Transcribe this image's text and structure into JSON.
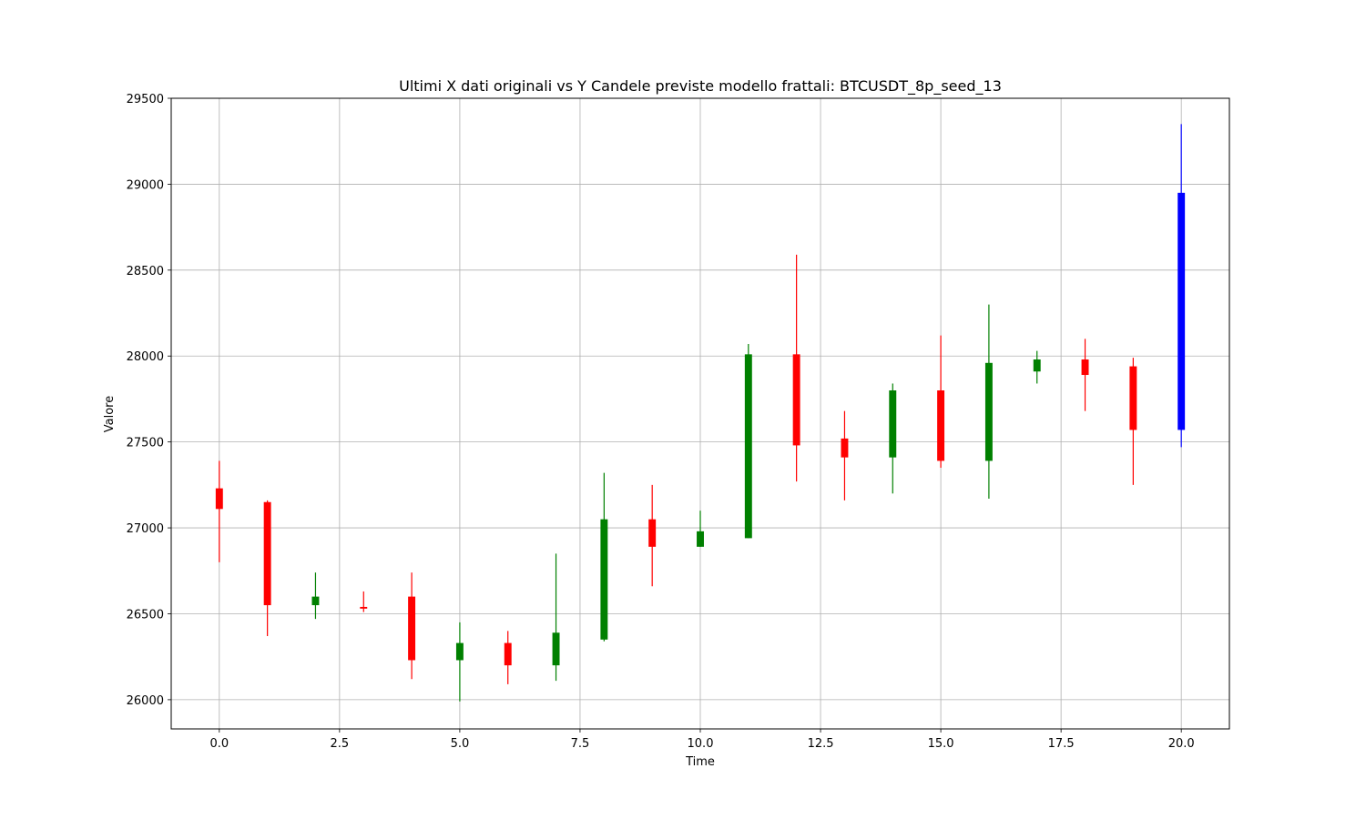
{
  "chart_data": {
    "type": "candlestick",
    "title": "Ultimi X dati originali vs Y Candele previste modello frattali: BTCUSDT_8p_seed_13",
    "xlabel": "Time",
    "ylabel": "Valore",
    "xlim": [
      -1,
      21
    ],
    "ylim": [
      25830,
      29500
    ],
    "grid": true,
    "x_ticks": [
      0.0,
      2.5,
      5.0,
      7.5,
      10.0,
      12.5,
      15.0,
      17.5,
      20.0
    ],
    "x_tick_labels": [
      "0.0",
      "2.5",
      "5.0",
      "7.5",
      "10.0",
      "12.5",
      "15.0",
      "17.5",
      "20.0"
    ],
    "y_ticks": [
      26000,
      26500,
      27000,
      27500,
      28000,
      28500,
      29000,
      29500
    ],
    "y_tick_labels": [
      "26000",
      "26500",
      "27000",
      "27500",
      "28000",
      "28500",
      "29000",
      "29500"
    ],
    "colors": {
      "up": "#008000",
      "down": "#ff0000",
      "forecast": "#0000ff"
    },
    "candles": [
      {
        "x": 0,
        "open": 27230,
        "high": 27390,
        "low": 26800,
        "close": 27110,
        "color": "red"
      },
      {
        "x": 1,
        "open": 27150,
        "high": 27160,
        "low": 26370,
        "close": 26550,
        "color": "red"
      },
      {
        "x": 2,
        "open": 26550,
        "high": 26740,
        "low": 26470,
        "close": 26600,
        "color": "green"
      },
      {
        "x": 3,
        "open": 26540,
        "high": 26630,
        "low": 26510,
        "close": 26530,
        "color": "red"
      },
      {
        "x": 4,
        "open": 26600,
        "high": 26740,
        "low": 26120,
        "close": 26230,
        "color": "red"
      },
      {
        "x": 5,
        "open": 26230,
        "high": 26450,
        "low": 25990,
        "close": 26330,
        "color": "green"
      },
      {
        "x": 6,
        "open": 26330,
        "high": 26400,
        "low": 26090,
        "close": 26200,
        "color": "red"
      },
      {
        "x": 7,
        "open": 26200,
        "high": 26850,
        "low": 26110,
        "close": 26390,
        "color": "green"
      },
      {
        "x": 8,
        "open": 26350,
        "high": 27320,
        "low": 26340,
        "close": 27050,
        "color": "green"
      },
      {
        "x": 9,
        "open": 27050,
        "high": 27250,
        "low": 26660,
        "close": 26890,
        "color": "red"
      },
      {
        "x": 10,
        "open": 26890,
        "high": 27100,
        "low": 26890,
        "close": 26980,
        "color": "green"
      },
      {
        "x": 11,
        "open": 26940,
        "high": 28070,
        "low": 26940,
        "close": 28010,
        "color": "green"
      },
      {
        "x": 12,
        "open": 28010,
        "high": 28590,
        "low": 27270,
        "close": 27480,
        "color": "red"
      },
      {
        "x": 13,
        "open": 27520,
        "high": 27680,
        "low": 27160,
        "close": 27410,
        "color": "red"
      },
      {
        "x": 14,
        "open": 27410,
        "high": 27840,
        "low": 27200,
        "close": 27800,
        "color": "green"
      },
      {
        "x": 15,
        "open": 27800,
        "high": 28120,
        "low": 27350,
        "close": 27390,
        "color": "red"
      },
      {
        "x": 16,
        "open": 27390,
        "high": 28300,
        "low": 27170,
        "close": 27960,
        "color": "green"
      },
      {
        "x": 17,
        "open": 27910,
        "high": 28030,
        "low": 27840,
        "close": 27980,
        "color": "green"
      },
      {
        "x": 18,
        "open": 27980,
        "high": 28100,
        "low": 27680,
        "close": 27890,
        "color": "red"
      },
      {
        "x": 19,
        "open": 27940,
        "high": 27990,
        "low": 27250,
        "close": 27570,
        "color": "red"
      },
      {
        "x": 20,
        "open": 27570,
        "high": 29350,
        "low": 27470,
        "close": 28950,
        "color": "blue"
      }
    ]
  }
}
